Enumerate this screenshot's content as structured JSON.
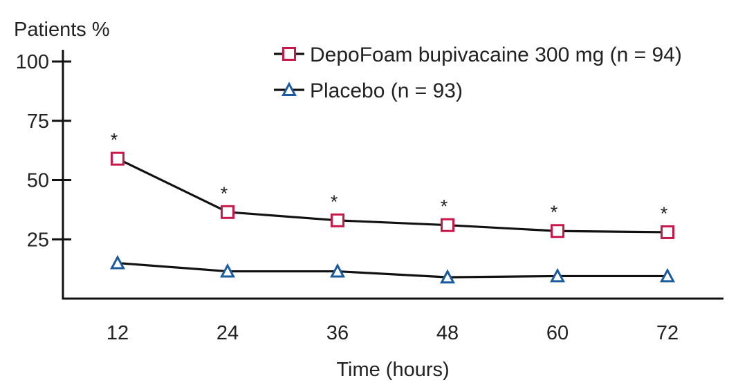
{
  "chart_data": {
    "type": "line",
    "title": "",
    "ylabel": "Patients %",
    "xlabel": "Time (hours)",
    "x": [
      12,
      24,
      36,
      48,
      60,
      72
    ],
    "x_tick_labels": [
      "12",
      "24",
      "36",
      "48",
      "60",
      "72"
    ],
    "ylim": [
      0,
      100
    ],
    "y_ticks": [
      25,
      50,
      75,
      100
    ],
    "y_tick_labels": [
      "25",
      "50",
      "75",
      "100"
    ],
    "grid": false,
    "legend_position": "top-right",
    "series": [
      {
        "name": "DepoFoam bupivacaine 300 mg (n = 94)",
        "marker": "square",
        "marker_color": "#c8174a",
        "line_color": "#111111",
        "values": [
          59,
          36.5,
          33,
          31,
          28.5,
          28
        ],
        "annotations": [
          "*",
          "*",
          "*",
          "*",
          "*",
          "*"
        ]
      },
      {
        "name": "Placebo (n = 93)",
        "marker": "triangle",
        "marker_color": "#1a5a9e",
        "line_color": "#111111",
        "values": [
          15,
          11.5,
          11.5,
          9,
          9.5,
          9.5
        ],
        "annotations": []
      }
    ]
  }
}
